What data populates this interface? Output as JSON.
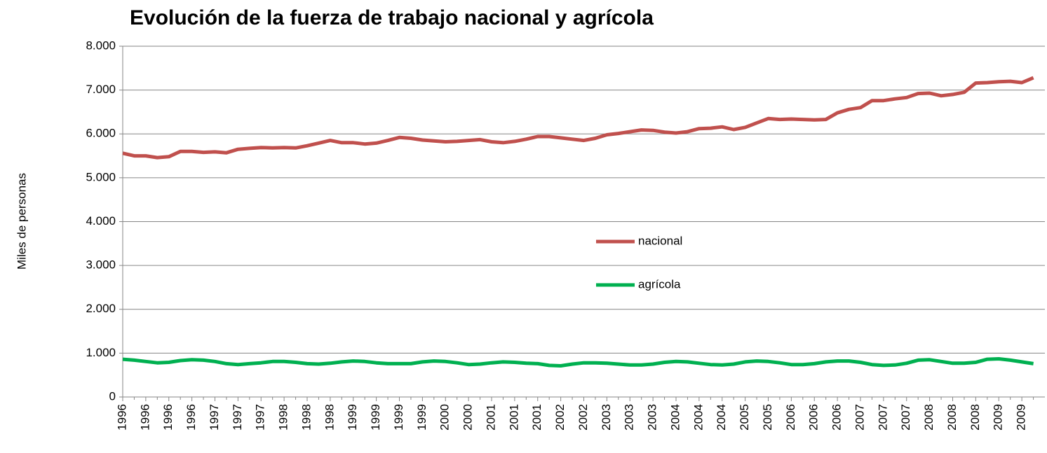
{
  "chart_data": {
    "type": "line",
    "title": "Evolución de la fuerza de trabajo nacional y agrícola",
    "y_label": "Miles de personas",
    "categories": [
      "1996",
      null,
      "1996",
      null,
      "1996",
      null,
      "1996",
      null,
      "1997",
      null,
      "1997",
      null,
      "1997",
      null,
      "1998",
      null,
      "1998",
      null,
      "1998",
      null,
      "1999",
      null,
      "1999",
      null,
      "1999",
      null,
      "1999",
      null,
      "2000",
      null,
      "2000",
      null,
      "2001",
      null,
      "2001",
      null,
      "2001",
      null,
      "2002",
      null,
      "2002",
      null,
      "2003",
      null,
      "2003",
      null,
      "2003",
      null,
      "2004",
      null,
      "2004",
      null,
      "2004",
      null,
      "2005",
      null,
      "2005",
      null,
      "2006",
      null,
      "2006",
      null,
      "2006",
      null,
      "2007",
      null,
      "2007",
      null,
      "2007",
      null,
      "2008",
      null,
      "2008",
      null,
      "2008",
      null,
      "2009",
      null,
      "2009",
      null
    ],
    "series": [
      {
        "name": "nacional",
        "color": "#c0504d",
        "values": [
          5560,
          5500,
          5500,
          5460,
          5480,
          5600,
          5600,
          5580,
          5590,
          5570,
          5650,
          5670,
          5690,
          5680,
          5690,
          5680,
          5730,
          5790,
          5850,
          5800,
          5800,
          5770,
          5790,
          5850,
          5920,
          5900,
          5860,
          5840,
          5820,
          5830,
          5850,
          5870,
          5820,
          5800,
          5830,
          5880,
          5940,
          5940,
          5910,
          5880,
          5850,
          5900,
          5980,
          6010,
          6050,
          6090,
          6080,
          6040,
          6020,
          6050,
          6120,
          6130,
          6160,
          6100,
          6150,
          6250,
          6350,
          6330,
          6340,
          6330,
          6320,
          6330,
          6480,
          6560,
          6600,
          6760,
          6760,
          6800,
          6830,
          6920,
          6930,
          6870,
          6900,
          6950,
          7160,
          7170,
          7190,
          7200,
          7170,
          7280
        ]
      },
      {
        "name": "agrícola",
        "color": "#00b050",
        "values": [
          860,
          840,
          810,
          780,
          790,
          830,
          850,
          840,
          810,
          760,
          740,
          760,
          780,
          810,
          810,
          790,
          760,
          750,
          770,
          800,
          820,
          810,
          780,
          760,
          760,
          760,
          800,
          820,
          810,
          780,
          740,
          750,
          780,
          800,
          790,
          770,
          760,
          720,
          710,
          750,
          780,
          780,
          770,
          750,
          730,
          730,
          750,
          790,
          810,
          800,
          770,
          740,
          730,
          750,
          800,
          820,
          810,
          780,
          740,
          740,
          760,
          800,
          820,
          820,
          790,
          740,
          720,
          730,
          770,
          840,
          850,
          810,
          770,
          770,
          790,
          860,
          870,
          840,
          800,
          760
        ]
      }
    ],
    "ylim": [
      0,
      8000
    ],
    "yticks": [
      0,
      {
        "value": 1000,
        "label": "1.000"
      },
      {
        "value": 2000,
        "label": "2.000"
      },
      {
        "value": 3000,
        "label": "3.000"
      },
      {
        "value": 4000,
        "label": "4.000"
      },
      {
        "value": 5000,
        "label": "5.000"
      },
      {
        "value": 6000,
        "label": "6.000"
      },
      {
        "value": 7000,
        "label": "7.000"
      },
      {
        "value": 8000,
        "label": "8.000"
      }
    ],
    "grid": true,
    "legend": "center"
  }
}
